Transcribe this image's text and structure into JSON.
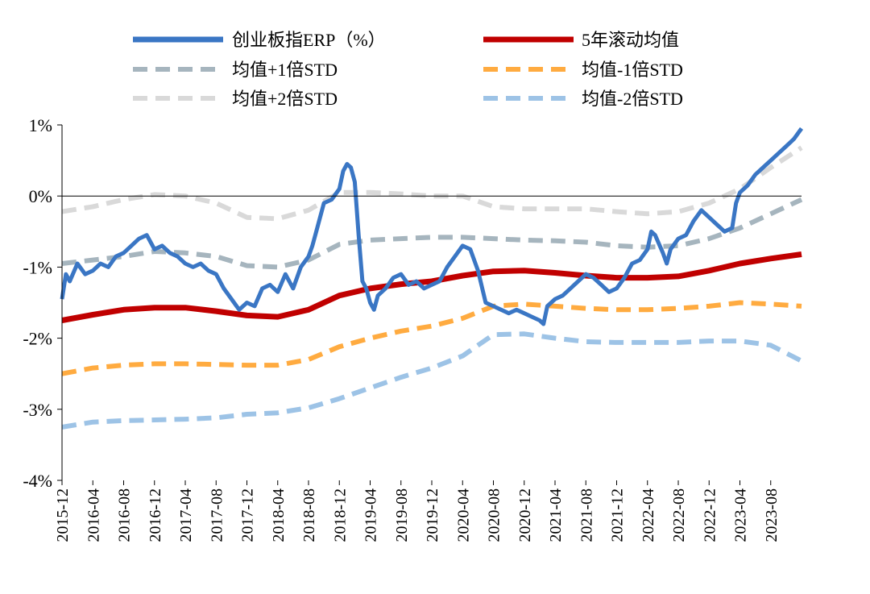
{
  "chart_data": {
    "type": "line",
    "title": "",
    "xlabel": "",
    "ylabel": "",
    "ylim": [
      -4,
      1
    ],
    "x_range": [
      "2015-12",
      "2023-12"
    ],
    "yticks": [
      {
        "value": 1,
        "label": "1%"
      },
      {
        "value": 0,
        "label": "0%"
      },
      {
        "value": -1,
        "label": "-1%"
      },
      {
        "value": -2,
        "label": "-2%"
      },
      {
        "value": -3,
        "label": "-3%"
      },
      {
        "value": -4,
        "label": "-4%"
      }
    ],
    "xticks": [
      {
        "value": 0,
        "label": "2015-12"
      },
      {
        "value": 4,
        "label": "2016-04"
      },
      {
        "value": 8,
        "label": "2016-08"
      },
      {
        "value": 12,
        "label": "2016-12"
      },
      {
        "value": 16,
        "label": "2017-04"
      },
      {
        "value": 20,
        "label": "2017-08"
      },
      {
        "value": 24,
        "label": "2017-12"
      },
      {
        "value": 28,
        "label": "2018-04"
      },
      {
        "value": 32,
        "label": "2018-08"
      },
      {
        "value": 36,
        "label": "2018-12"
      },
      {
        "value": 40,
        "label": "2019-04"
      },
      {
        "value": 44,
        "label": "2019-08"
      },
      {
        "value": 48,
        "label": "2019-12"
      },
      {
        "value": 52,
        "label": "2020-04"
      },
      {
        "value": 56,
        "label": "2020-08"
      },
      {
        "value": 60,
        "label": "2020-12"
      },
      {
        "value": 64,
        "label": "2021-04"
      },
      {
        "value": 68,
        "label": "2021-08"
      },
      {
        "value": 72,
        "label": "2021-12"
      },
      {
        "value": 76,
        "label": "2022-04"
      },
      {
        "value": 80,
        "label": "2022-08"
      },
      {
        "value": 84,
        "label": "2022-12"
      },
      {
        "value": 88,
        "label": "2023-04"
      },
      {
        "value": 92,
        "label": "2023-08"
      }
    ],
    "x_max": 96,
    "legend_position": "top",
    "series": [
      {
        "name": "创业板指ERP（%）",
        "color": "#3a76c4",
        "style": "solid",
        "weight": "thin",
        "points": [
          [
            0,
            -1.45
          ],
          [
            0.5,
            -1.1
          ],
          [
            1,
            -1.2
          ],
          [
            2,
            -0.95
          ],
          [
            3,
            -1.1
          ],
          [
            4,
            -1.05
          ],
          [
            5,
            -0.95
          ],
          [
            6,
            -1.0
          ],
          [
            7,
            -0.85
          ],
          [
            8,
            -0.8
          ],
          [
            9,
            -0.7
          ],
          [
            10,
            -0.6
          ],
          [
            11,
            -0.55
          ],
          [
            12,
            -0.75
          ],
          [
            13,
            -0.7
          ],
          [
            14,
            -0.8
          ],
          [
            15,
            -0.85
          ],
          [
            16,
            -0.95
          ],
          [
            17,
            -1.0
          ],
          [
            18,
            -0.95
          ],
          [
            19,
            -1.05
          ],
          [
            20,
            -1.1
          ],
          [
            21,
            -1.3
          ],
          [
            22,
            -1.45
          ],
          [
            23,
            -1.6
          ],
          [
            24,
            -1.5
          ],
          [
            25,
            -1.55
          ],
          [
            26,
            -1.3
          ],
          [
            27,
            -1.25
          ],
          [
            28,
            -1.35
          ],
          [
            29,
            -1.1
          ],
          [
            30,
            -1.3
          ],
          [
            31,
            -1.0
          ],
          [
            32,
            -0.85
          ],
          [
            32.5,
            -0.7
          ],
          [
            33,
            -0.5
          ],
          [
            34,
            -0.1
          ],
          [
            35,
            -0.05
          ],
          [
            36,
            0.1
          ],
          [
            36.5,
            0.35
          ],
          [
            37,
            0.45
          ],
          [
            37.5,
            0.4
          ],
          [
            38,
            0.2
          ],
          [
            38.5,
            -0.55
          ],
          [
            39,
            -1.2
          ],
          [
            39.5,
            -1.3
          ],
          [
            40,
            -1.5
          ],
          [
            40.5,
            -1.6
          ],
          [
            41,
            -1.4
          ],
          [
            42,
            -1.3
          ],
          [
            43,
            -1.15
          ],
          [
            44,
            -1.1
          ],
          [
            45,
            -1.25
          ],
          [
            46,
            -1.2
          ],
          [
            47,
            -1.3
          ],
          [
            48,
            -1.25
          ],
          [
            49,
            -1.2
          ],
          [
            50,
            -1.0
          ],
          [
            51,
            -0.85
          ],
          [
            52,
            -0.7
          ],
          [
            53,
            -0.75
          ],
          [
            54,
            -1.05
          ],
          [
            55,
            -1.5
          ],
          [
            56,
            -1.55
          ],
          [
            57,
            -1.6
          ],
          [
            58,
            -1.65
          ],
          [
            59,
            -1.6
          ],
          [
            60,
            -1.65
          ],
          [
            61,
            -1.7
          ],
          [
            62,
            -1.75
          ],
          [
            62.5,
            -1.8
          ],
          [
            63,
            -1.55
          ],
          [
            64,
            -1.45
          ],
          [
            65,
            -1.4
          ],
          [
            66,
            -1.3
          ],
          [
            67,
            -1.2
          ],
          [
            68,
            -1.1
          ],
          [
            69,
            -1.15
          ],
          [
            70,
            -1.25
          ],
          [
            71,
            -1.35
          ],
          [
            72,
            -1.3
          ],
          [
            73,
            -1.15
          ],
          [
            74,
            -0.95
          ],
          [
            75,
            -0.9
          ],
          [
            76,
            -0.75
          ],
          [
            76.5,
            -0.5
          ],
          [
            77,
            -0.55
          ],
          [
            78,
            -0.8
          ],
          [
            78.5,
            -0.95
          ],
          [
            79,
            -0.75
          ],
          [
            80,
            -0.6
          ],
          [
            81,
            -0.55
          ],
          [
            82,
            -0.35
          ],
          [
            83,
            -0.2
          ],
          [
            84,
            -0.3
          ],
          [
            85,
            -0.4
          ],
          [
            86,
            -0.5
          ],
          [
            87,
            -0.45
          ],
          [
            87.5,
            -0.1
          ],
          [
            88,
            0.05
          ],
          [
            89,
            0.15
          ],
          [
            90,
            0.3
          ],
          [
            91,
            0.4
          ],
          [
            92,
            0.5
          ],
          [
            93,
            0.6
          ],
          [
            94,
            0.7
          ],
          [
            95,
            0.8
          ],
          [
            96,
            0.95
          ]
        ]
      },
      {
        "name": "5年滚动均值",
        "color": "#c00000",
        "style": "solid",
        "weight": "thick",
        "points": [
          [
            0,
            -1.75
          ],
          [
            4,
            -1.67
          ],
          [
            8,
            -1.6
          ],
          [
            12,
            -1.57
          ],
          [
            16,
            -1.57
          ],
          [
            20,
            -1.62
          ],
          [
            24,
            -1.68
          ],
          [
            28,
            -1.7
          ],
          [
            32,
            -1.6
          ],
          [
            36,
            -1.4
          ],
          [
            40,
            -1.3
          ],
          [
            44,
            -1.24
          ],
          [
            48,
            -1.2
          ],
          [
            52,
            -1.12
          ],
          [
            56,
            -1.06
          ],
          [
            60,
            -1.05
          ],
          [
            64,
            -1.08
          ],
          [
            68,
            -1.12
          ],
          [
            72,
            -1.15
          ],
          [
            76,
            -1.15
          ],
          [
            80,
            -1.13
          ],
          [
            84,
            -1.05
          ],
          [
            88,
            -0.95
          ],
          [
            92,
            -0.88
          ],
          [
            96,
            -0.82
          ]
        ]
      },
      {
        "name": "均值+1倍STD",
        "color": "#a6b5be",
        "style": "dashed",
        "weight": "medium",
        "points": [
          [
            0,
            -0.95
          ],
          [
            4,
            -0.9
          ],
          [
            8,
            -0.85
          ],
          [
            12,
            -0.78
          ],
          [
            16,
            -0.8
          ],
          [
            20,
            -0.85
          ],
          [
            24,
            -0.98
          ],
          [
            28,
            -1.0
          ],
          [
            32,
            -0.9
          ],
          [
            36,
            -0.68
          ],
          [
            40,
            -0.62
          ],
          [
            44,
            -0.6
          ],
          [
            48,
            -0.58
          ],
          [
            52,
            -0.58
          ],
          [
            56,
            -0.6
          ],
          [
            60,
            -0.62
          ],
          [
            64,
            -0.63
          ],
          [
            68,
            -0.65
          ],
          [
            72,
            -0.7
          ],
          [
            76,
            -0.72
          ],
          [
            80,
            -0.7
          ],
          [
            84,
            -0.6
          ],
          [
            88,
            -0.45
          ],
          [
            92,
            -0.25
          ],
          [
            96,
            -0.05
          ]
        ]
      },
      {
        "name": "均值-1倍STD",
        "color": "#ffab40",
        "style": "dashed",
        "weight": "medium",
        "points": [
          [
            0,
            -2.5
          ],
          [
            4,
            -2.42
          ],
          [
            8,
            -2.38
          ],
          [
            12,
            -2.36
          ],
          [
            16,
            -2.36
          ],
          [
            20,
            -2.37
          ],
          [
            24,
            -2.38
          ],
          [
            28,
            -2.38
          ],
          [
            32,
            -2.3
          ],
          [
            36,
            -2.12
          ],
          [
            40,
            -2.0
          ],
          [
            44,
            -1.9
          ],
          [
            48,
            -1.83
          ],
          [
            52,
            -1.72
          ],
          [
            56,
            -1.55
          ],
          [
            60,
            -1.52
          ],
          [
            64,
            -1.55
          ],
          [
            68,
            -1.58
          ],
          [
            72,
            -1.6
          ],
          [
            76,
            -1.6
          ],
          [
            80,
            -1.58
          ],
          [
            84,
            -1.55
          ],
          [
            88,
            -1.5
          ],
          [
            92,
            -1.52
          ],
          [
            96,
            -1.55
          ]
        ]
      },
      {
        "name": "均值+2倍STD",
        "color": "#d9d9d9",
        "style": "dashed",
        "weight": "medium",
        "points": [
          [
            0,
            -0.22
          ],
          [
            4,
            -0.15
          ],
          [
            8,
            -0.05
          ],
          [
            12,
            0.02
          ],
          [
            16,
            0.0
          ],
          [
            20,
            -0.1
          ],
          [
            24,
            -0.3
          ],
          [
            28,
            -0.32
          ],
          [
            32,
            -0.2
          ],
          [
            36,
            0.05
          ],
          [
            40,
            0.05
          ],
          [
            44,
            0.03
          ],
          [
            48,
            0.0
          ],
          [
            52,
            0.0
          ],
          [
            56,
            -0.15
          ],
          [
            60,
            -0.18
          ],
          [
            64,
            -0.18
          ],
          [
            68,
            -0.18
          ],
          [
            72,
            -0.22
          ],
          [
            76,
            -0.25
          ],
          [
            80,
            -0.22
          ],
          [
            84,
            -0.1
          ],
          [
            88,
            0.1
          ],
          [
            92,
            0.4
          ],
          [
            96,
            0.68
          ]
        ]
      },
      {
        "name": "均值-2倍STD",
        "color": "#9dc3e6",
        "style": "dashed",
        "weight": "medium",
        "points": [
          [
            0,
            -3.25
          ],
          [
            4,
            -3.18
          ],
          [
            8,
            -3.16
          ],
          [
            12,
            -3.15
          ],
          [
            16,
            -3.14
          ],
          [
            20,
            -3.12
          ],
          [
            24,
            -3.07
          ],
          [
            28,
            -3.05
          ],
          [
            32,
            -2.98
          ],
          [
            36,
            -2.85
          ],
          [
            40,
            -2.7
          ],
          [
            44,
            -2.55
          ],
          [
            48,
            -2.42
          ],
          [
            52,
            -2.25
          ],
          [
            56,
            -1.95
          ],
          [
            60,
            -1.94
          ],
          [
            64,
            -2.0
          ],
          [
            68,
            -2.05
          ],
          [
            72,
            -2.06
          ],
          [
            76,
            -2.06
          ],
          [
            80,
            -2.06
          ],
          [
            84,
            -2.04
          ],
          [
            88,
            -2.04
          ],
          [
            92,
            -2.1
          ],
          [
            96,
            -2.32
          ]
        ]
      }
    ]
  }
}
